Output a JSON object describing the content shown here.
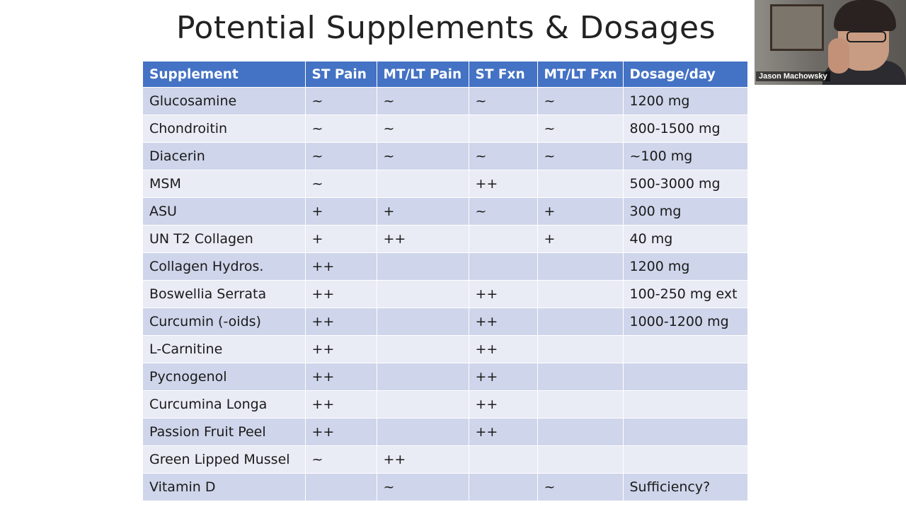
{
  "slide": {
    "title": "Potential Supplements & Dosages"
  },
  "table": {
    "headers": [
      "Supplement",
      "ST Pain",
      "MT/LT Pain",
      "ST Fxn",
      "MT/LT Fxn",
      "Dosage/day"
    ],
    "rows": [
      [
        "Glucosamine",
        "~",
        "~",
        "~",
        "~",
        "1200 mg"
      ],
      [
        "Chondroitin",
        "~",
        "~",
        "",
        "~",
        "800-1500 mg"
      ],
      [
        "Diacerin",
        "~",
        "~",
        "~",
        "~",
        "~100 mg"
      ],
      [
        "MSM",
        "~",
        "",
        "++",
        "",
        "500-3000 mg"
      ],
      [
        "ASU",
        "+",
        "+",
        "~",
        "+",
        "300 mg"
      ],
      [
        "UN T2 Collagen",
        "+",
        "++",
        "",
        "+",
        "40 mg"
      ],
      [
        "Collagen Hydros.",
        "++",
        "",
        "",
        "",
        "1200 mg"
      ],
      [
        "Boswellia Serrata",
        "++",
        "",
        "++",
        "",
        "100-250 mg ext"
      ],
      [
        "Curcumin (-oids)",
        "++",
        "",
        "++",
        "",
        "1000-1200 mg"
      ],
      [
        "L-Carnitine",
        "++",
        "",
        "++",
        "",
        ""
      ],
      [
        "Pycnogenol",
        "++",
        "",
        "++",
        "",
        ""
      ],
      [
        "Curcumina Longa",
        "++",
        "",
        "++",
        "",
        ""
      ],
      [
        "Passion Fruit Peel",
        "++",
        "",
        "++",
        "",
        ""
      ],
      [
        "Green Lipped Mussel",
        "~",
        "++",
        "",
        "",
        ""
      ],
      [
        "Vitamin D",
        "",
        "~",
        "",
        "~",
        "Sufficiency?"
      ]
    ]
  },
  "webcam": {
    "participant_name": "Jason Machowsky"
  },
  "colors": {
    "header_bg": "#4472c4",
    "row_odd_bg": "#cfd5ea",
    "row_even_bg": "#e9ebf5"
  }
}
